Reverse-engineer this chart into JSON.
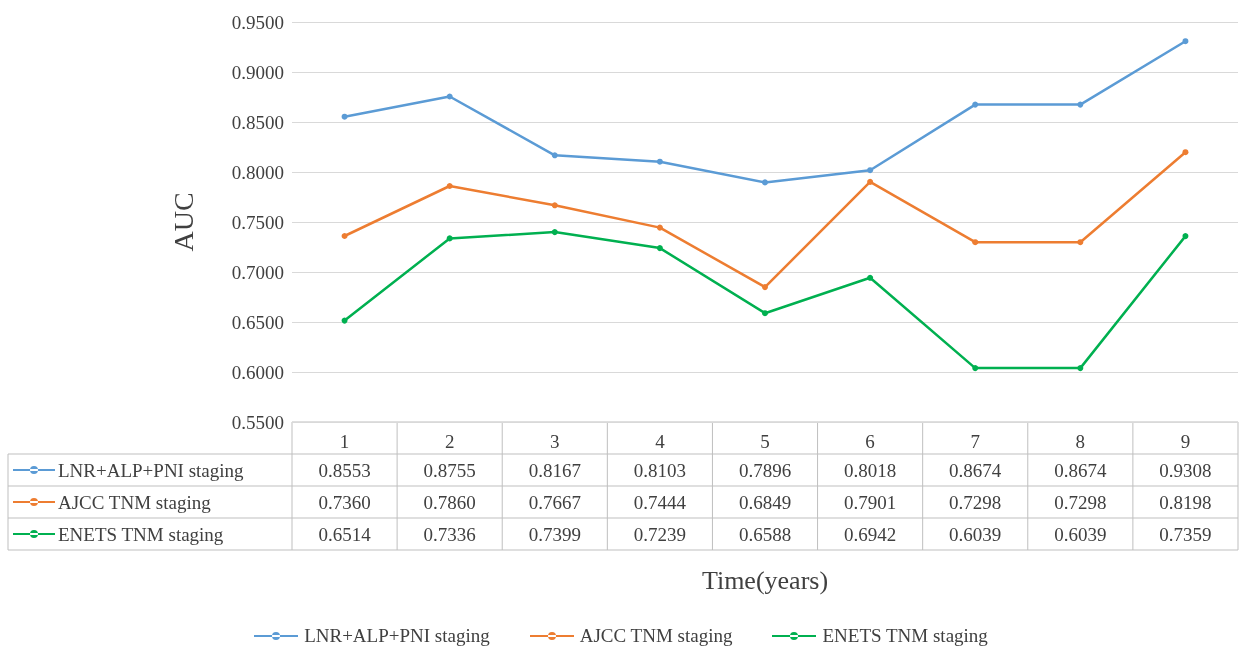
{
  "chart_data": {
    "type": "line",
    "xlabel": "Time(years)",
    "ylabel": "AUC",
    "categories": [
      "1",
      "2",
      "3",
      "4",
      "5",
      "6",
      "7",
      "8",
      "9"
    ],
    "series": [
      {
        "name": "LNR+ALP+PNI staging",
        "color": "#5b9bd5",
        "values": [
          0.8553,
          0.8755,
          0.8167,
          0.8103,
          0.7896,
          0.8018,
          0.8674,
          0.8674,
          0.9308
        ],
        "value_labels": [
          "0.8553",
          "0.8755",
          "0.8167",
          "0.8103",
          "0.7896",
          "0.8018",
          "0.8674",
          "0.8674",
          "0.9308"
        ]
      },
      {
        "name": "AJCC TNM staging",
        "color": "#ed7d31",
        "values": [
          0.736,
          0.786,
          0.7667,
          0.7444,
          0.6849,
          0.7901,
          0.7298,
          0.7298,
          0.8198
        ],
        "value_labels": [
          "0.7360",
          "0.7860",
          "0.7667",
          "0.7444",
          "0.6849",
          "0.7901",
          "0.7298",
          "0.7298",
          "0.8198"
        ]
      },
      {
        "name": "ENETS TNM staging",
        "color": "#00b050",
        "values": [
          0.6514,
          0.7336,
          0.7399,
          0.7239,
          0.6588,
          0.6942,
          0.6039,
          0.6039,
          0.7359
        ],
        "value_labels": [
          "0.6514",
          "0.7336",
          "0.7399",
          "0.7239",
          "0.6588",
          "0.6942",
          "0.6039",
          "0.6039",
          "0.7359"
        ]
      }
    ],
    "ylim": [
      0.55,
      0.95
    ],
    "yticks": [
      {
        "value": 0.55,
        "label": "0.5500"
      },
      {
        "value": 0.6,
        "label": "0.6000"
      },
      {
        "value": 0.65,
        "label": "0.6500"
      },
      {
        "value": 0.7,
        "label": "0.7000"
      },
      {
        "value": 0.75,
        "label": "0.7500"
      },
      {
        "value": 0.8,
        "label": "0.8000"
      },
      {
        "value": 0.85,
        "label": "0.8500"
      },
      {
        "value": 0.9,
        "label": "0.9000"
      },
      {
        "value": 0.95,
        "label": "0.9500"
      }
    ],
    "grid": "y",
    "legend": "bottom",
    "marker": "circle",
    "line_style": "solid"
  }
}
